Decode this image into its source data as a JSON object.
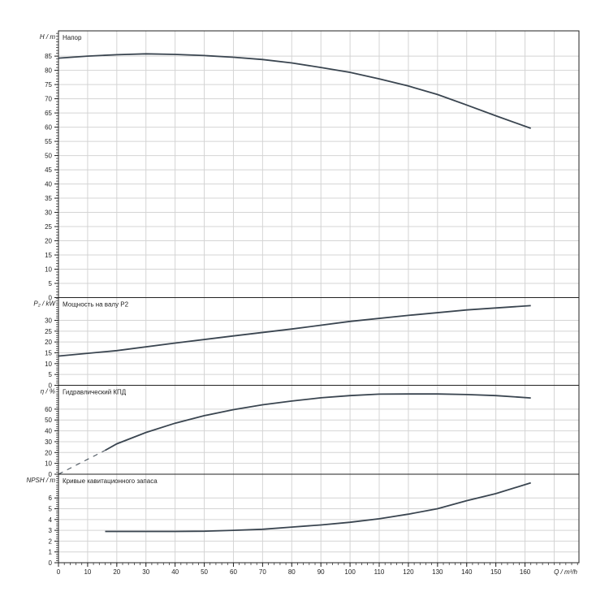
{
  "chart_data": [
    {
      "type": "line",
      "title": "Напор",
      "ylabel": "H / m",
      "ylim": [
        0,
        93.9
      ],
      "yticks": [
        0,
        5,
        10,
        15,
        20,
        25,
        30,
        35,
        40,
        45,
        50,
        55,
        60,
        65,
        70,
        75,
        80,
        85
      ],
      "series": [
        {
          "x": [
            0,
            10,
            20,
            30,
            40,
            50,
            60,
            70,
            80,
            90,
            100,
            110,
            120,
            130,
            140,
            150,
            162
          ],
          "y": [
            84.3,
            85,
            85.5,
            85.8,
            85.6,
            85.2,
            84.6,
            83.8,
            82.6,
            81,
            79.3,
            77,
            74.5,
            71.5,
            67.8,
            64,
            59.6
          ]
        }
      ]
    },
    {
      "type": "line",
      "title": "Мощность на валу P2",
      "ylabel": "P₂ / kW",
      "ylim": [
        0,
        40.5
      ],
      "yticks": [
        0,
        5,
        10,
        15,
        20,
        25,
        30
      ],
      "series": [
        {
          "x": [
            0,
            20,
            40,
            60,
            80,
            100,
            120,
            140,
            162
          ],
          "y": [
            13.5,
            16,
            19.5,
            22.8,
            26,
            29.5,
            32.3,
            34.8,
            36.8
          ]
        }
      ]
    },
    {
      "type": "line",
      "title": "Гидравлический КПД",
      "ylabel": "η / %",
      "ylim": [
        0,
        82
      ],
      "yticks": [
        0,
        10,
        20,
        30,
        40,
        50,
        60
      ],
      "series": [
        {
          "x": [
            16,
            20,
            30,
            40,
            50,
            60,
            70,
            80,
            90,
            100,
            110,
            120,
            130,
            140,
            150,
            162
          ],
          "y": [
            22,
            28,
            38.5,
            47,
            54,
            59.5,
            64,
            67.5,
            70.5,
            72.5,
            73.8,
            74,
            74,
            73.5,
            72.5,
            70.3
          ]
        },
        {
          "style": "dashed",
          "x": [
            0,
            16
          ],
          "y": [
            0,
            22
          ]
        }
      ]
    },
    {
      "type": "line",
      "title": "Кривые кавитационного запаса",
      "ylabel": "NPSH / m",
      "ylim": [
        0,
        8.2
      ],
      "yticks": [
        0,
        1,
        2,
        3,
        4,
        5,
        6
      ],
      "series": [
        {
          "x": [
            16,
            30,
            40,
            50,
            60,
            70,
            80,
            90,
            100,
            110,
            120,
            130,
            140,
            150,
            162
          ],
          "y": [
            2.9,
            2.9,
            2.9,
            2.92,
            3.0,
            3.1,
            3.3,
            3.5,
            3.75,
            4.07,
            4.5,
            5.0,
            5.75,
            6.4,
            7.4
          ]
        }
      ]
    }
  ],
  "x_axis": {
    "label": "Q / m³/h",
    "xlim": [
      0,
      178.5
    ],
    "xticks": [
      0,
      10,
      20,
      30,
      40,
      50,
      60,
      70,
      80,
      90,
      100,
      110,
      120,
      130,
      140,
      150,
      160
    ],
    "grid": true
  },
  "colors": {
    "curve": "#3a4550",
    "grid": "#d4d4d4",
    "frame": "#222222"
  }
}
